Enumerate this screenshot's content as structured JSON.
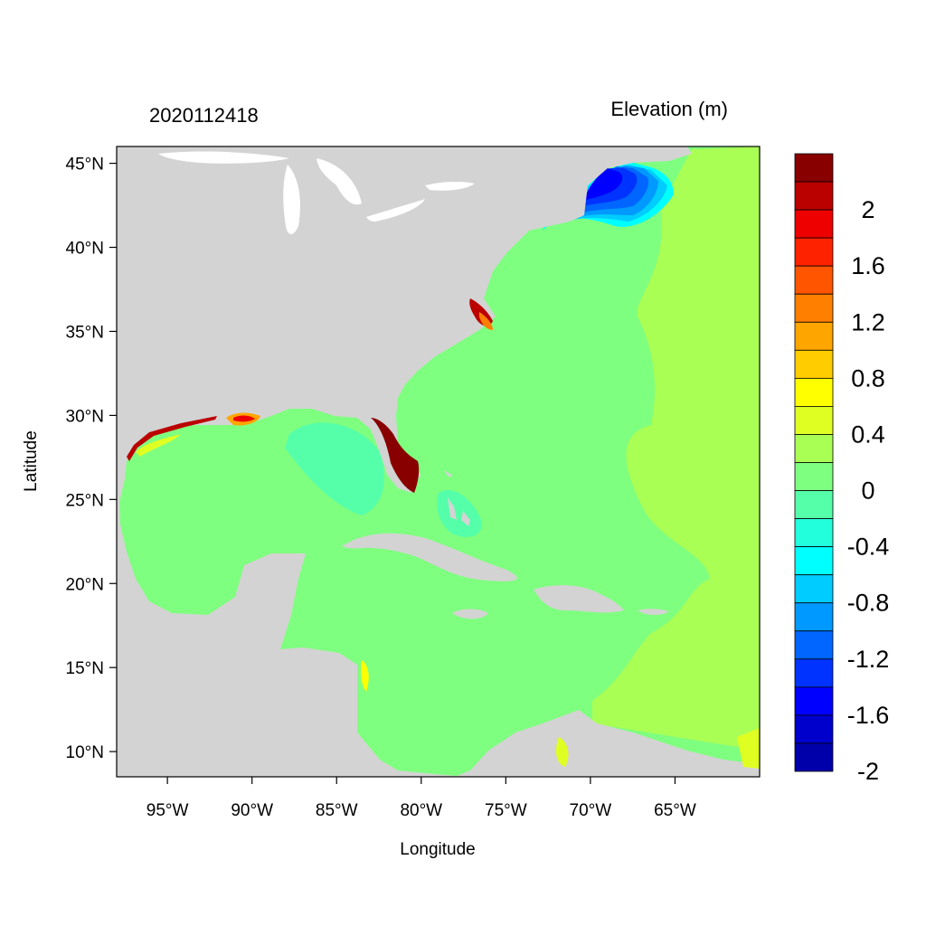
{
  "title_left": "2020112418",
  "title_right": "Elevation (m)",
  "x_axis": {
    "label": "Longitude",
    "range": [
      -98,
      -60
    ],
    "ticks": [
      {
        "value": -95,
        "label": "95°W"
      },
      {
        "value": -90,
        "label": "90°W"
      },
      {
        "value": -85,
        "label": "85°W"
      },
      {
        "value": -80,
        "label": "80°W"
      },
      {
        "value": -75,
        "label": "75°W"
      },
      {
        "value": -70,
        "label": "70°W"
      },
      {
        "value": -65,
        "label": "65°W"
      }
    ]
  },
  "y_axis": {
    "label": "Latitude",
    "range": [
      8.5,
      46
    ],
    "ticks": [
      {
        "value": 45,
        "label": "45°N"
      },
      {
        "value": 40,
        "label": "40°N"
      },
      {
        "value": 35,
        "label": "35°N"
      },
      {
        "value": 30,
        "label": "30°N"
      },
      {
        "value": 25,
        "label": "25°N"
      },
      {
        "value": 20,
        "label": "20°N"
      },
      {
        "value": 15,
        "label": "15°N"
      },
      {
        "value": 10,
        "label": "10°N"
      }
    ]
  },
  "colorbar": {
    "colors_top_to_bottom": [
      "#880000",
      "#bb0000",
      "#ee0000",
      "#ff2200",
      "#ff5500",
      "#ff7f00",
      "#ffa500",
      "#ffcc00",
      "#ffff00",
      "#dfff22",
      "#aaff55",
      "#7fff7f",
      "#55ffaa",
      "#22ffdd",
      "#00ffff",
      "#00ccff",
      "#0099ff",
      "#0066ff",
      "#0033ff",
      "#0000ff",
      "#0000cc",
      "#0000aa"
    ],
    "labels": [
      {
        "boundary": 2,
        "text": "2"
      },
      {
        "boundary": 4,
        "text": "1.6"
      },
      {
        "boundary": 6,
        "text": "1.2"
      },
      {
        "boundary": 8,
        "text": "0.8"
      },
      {
        "boundary": 10,
        "text": "0.4"
      },
      {
        "boundary": 12,
        "text": "0"
      },
      {
        "boundary": 14,
        "text": "-0.4"
      },
      {
        "boundary": 16,
        "text": "-0.8"
      },
      {
        "boundary": 18,
        "text": "-1.2"
      },
      {
        "boundary": 20,
        "text": "-1.6"
      },
      {
        "boundary": 22,
        "text": "-2"
      }
    ]
  },
  "colors": {
    "land": "#d3d3d3",
    "ocean_zero": "#7fff7f",
    "ocean_east": "#aaff55",
    "lakes": "#ffffff"
  }
}
